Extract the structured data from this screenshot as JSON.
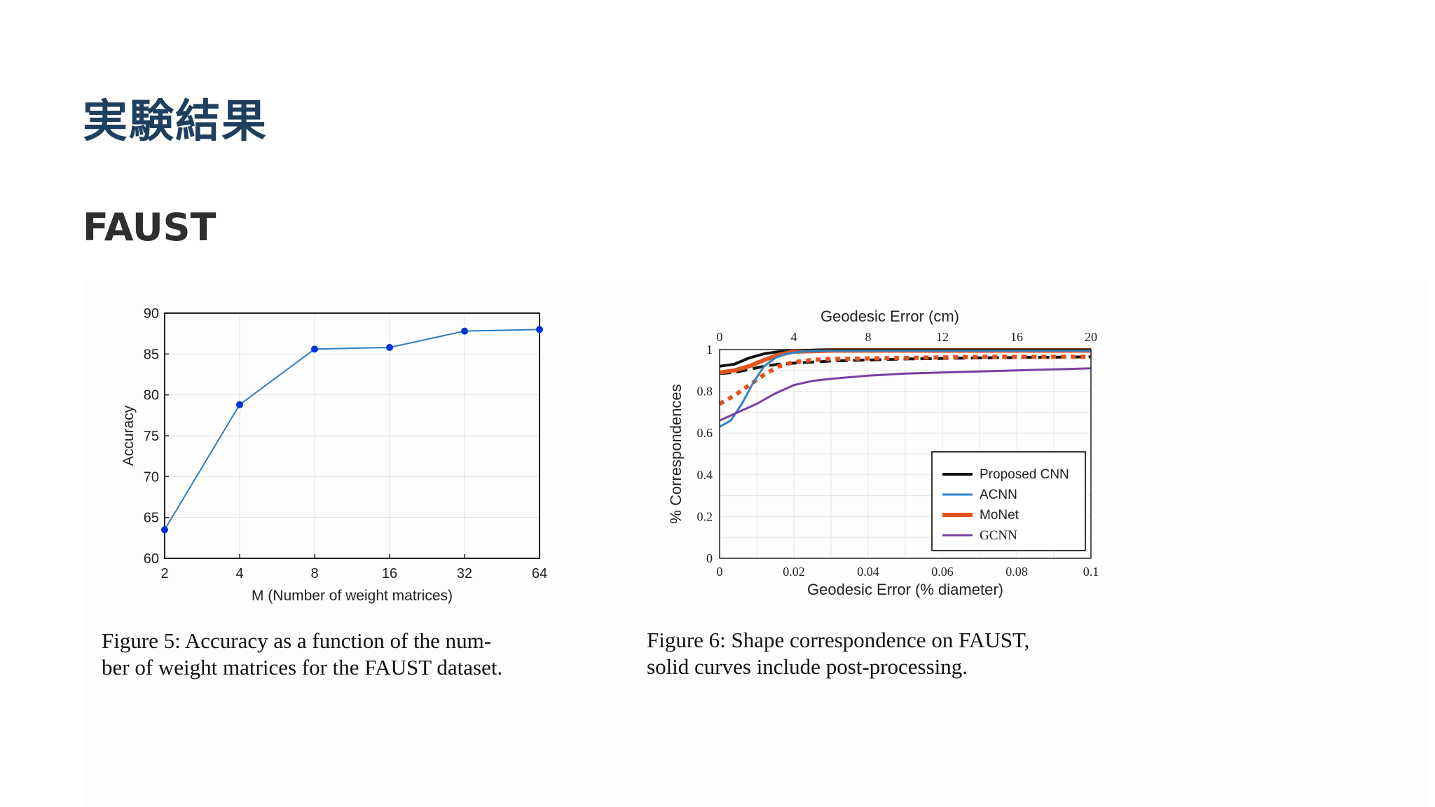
{
  "slide": {
    "title": "実験結果",
    "subtitle": "FAUST"
  },
  "colors": {
    "title": "#1f3f5e",
    "fig5_line": "#2d7fc1",
    "fig5_marker": "#0033dd",
    "proposed": "#111111",
    "acnn": "#2d84c8",
    "monet": "#e2541f",
    "gcnn": "#7b3fa0"
  },
  "figures": {
    "fig5": {
      "caption": [
        "Figure 5:  Accuracy as a function of the num-",
        "ber of weight matrices for the FAUST dataset."
      ]
    },
    "fig6": {
      "caption": [
        "Figure 6:  Shape correspondence on FAUST,",
        "solid curves include post-processing."
      ]
    }
  },
  "chart_data": [
    {
      "id": "fig5",
      "type": "line",
      "xlabel": "M (Number of weight matrices)",
      "ylabel": "Accuracy",
      "x_scale": "log2",
      "x": [
        2,
        4,
        8,
        16,
        32,
        64
      ],
      "xticks": [
        "2",
        "4",
        "8",
        "16",
        "32",
        "64"
      ],
      "y": [
        63.5,
        78.8,
        85.6,
        85.8,
        87.8,
        88.0
      ],
      "ylim": [
        60,
        90
      ],
      "yticks": [
        60,
        65,
        70,
        75,
        80,
        85,
        90
      ],
      "grid": true,
      "markers": true
    },
    {
      "id": "fig6",
      "type": "line",
      "xlabel": "Geodesic Error (% diameter)",
      "x2label": "Geodesic Error (cm)",
      "ylabel": "% Correspondences",
      "xlim": [
        0,
        0.1
      ],
      "ylim": [
        0,
        1
      ],
      "xticks": [
        "0",
        "0.02",
        "0.04",
        "0.06",
        "0.08",
        "0.1"
      ],
      "x2ticks": [
        "0",
        "4",
        "8",
        "12",
        "16",
        "20"
      ],
      "yticks": [
        "0",
        "0.2",
        "0.4",
        "0.6",
        "0.8",
        "1"
      ],
      "grid": true,
      "legend": "bottom-right",
      "legend_entries": [
        {
          "label": "Proposed CNN",
          "color": "#111111",
          "width": 4
        },
        {
          "label": "ACNN",
          "color": "#2d84c8",
          "width": 3
        },
        {
          "label": "MoNet",
          "color": "#e2541f",
          "width": 6
        },
        {
          "label": "GCNN",
          "color": "#7b3fa0",
          "width": 3
        }
      ],
      "series": [
        {
          "color": "#111111",
          "style": "solid",
          "width": 4,
          "x": [
            0,
            0.004,
            0.008,
            0.012,
            0.016,
            0.02,
            0.03,
            0.1
          ],
          "y": [
            0.92,
            0.93,
            0.96,
            0.98,
            0.99,
            0.995,
            1.0,
            1.0
          ]
        },
        {
          "color": "#111111",
          "style": "dashed",
          "width": 4,
          "x": [
            0,
            0.004,
            0.008,
            0.012,
            0.016,
            0.02,
            0.03,
            0.05,
            0.07,
            0.1
          ],
          "y": [
            0.885,
            0.89,
            0.905,
            0.92,
            0.93,
            0.935,
            0.945,
            0.955,
            0.96,
            0.965
          ]
        },
        {
          "color": "#e2541f",
          "style": "solid",
          "width": 6,
          "x": [
            0,
            0.004,
            0.008,
            0.012,
            0.016,
            0.02,
            0.03,
            0.1
          ],
          "y": [
            0.89,
            0.9,
            0.92,
            0.95,
            0.975,
            0.99,
            0.995,
            0.995
          ]
        },
        {
          "color": "#e2541f",
          "style": "dotted",
          "width": 6,
          "x": [
            0,
            0.004,
            0.008,
            0.012,
            0.016,
            0.02,
            0.025,
            0.03,
            0.05,
            0.07,
            0.1
          ],
          "y": [
            0.74,
            0.78,
            0.83,
            0.88,
            0.92,
            0.94,
            0.95,
            0.955,
            0.96,
            0.965,
            0.965
          ]
        },
        {
          "color": "#2d84c8",
          "style": "solid",
          "width": 3,
          "x": [
            0,
            0.003,
            0.006,
            0.009,
            0.012,
            0.015,
            0.018,
            0.022,
            0.03,
            0.1
          ],
          "y": [
            0.63,
            0.66,
            0.74,
            0.84,
            0.92,
            0.96,
            0.98,
            0.99,
            0.995,
            0.995
          ]
        },
        {
          "color": "#7b3fa0",
          "style": "solid",
          "width": 3,
          "x": [
            0,
            0.005,
            0.01,
            0.015,
            0.02,
            0.025,
            0.03,
            0.04,
            0.05,
            0.07,
            0.09,
            0.1
          ],
          "y": [
            0.66,
            0.7,
            0.74,
            0.79,
            0.83,
            0.85,
            0.86,
            0.875,
            0.885,
            0.895,
            0.905,
            0.91
          ]
        }
      ]
    }
  ]
}
